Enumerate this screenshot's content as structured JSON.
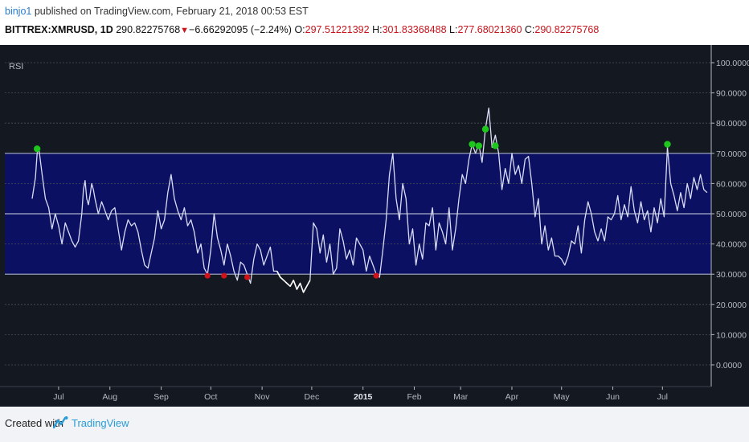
{
  "header": {
    "author": "binjo1",
    "published_text": "published on TradingView.com, February 21, 2018 00:53 EST",
    "symbol": "BITTREX:XMRUSD, 1D",
    "last": "290.82275768",
    "change_arrow": "▼",
    "change": "−6.66292095 (−2.24%)",
    "o_label": "O:",
    "o_value": "297.51221392",
    "h_label": "H:",
    "h_value": "301.83368488",
    "l_label": "L:",
    "l_value": "277.68021360",
    "c_label": "C:",
    "c_value": "290.82275768"
  },
  "footer": {
    "created_with": "Created with",
    "brand": "TradingView"
  },
  "colors": {
    "background": "#141821",
    "band_fill": "#0c1062",
    "line": "#d8dcf6",
    "overbought_dot": "#1ec61e",
    "oversold_dot": "#d0121a",
    "grid": "#4a4f5a",
    "band_line": "#a9b0c8",
    "axis_text": "#b4b9c2",
    "accent": "#2a7ccf"
  },
  "chart_data": {
    "type": "line",
    "indicator_label": "RSI",
    "ylim": [
      -5,
      105
    ],
    "y_ticks": [
      "0.0000",
      "10.0000",
      "20.0000",
      "30.0000",
      "40.0000",
      "50.0000",
      "60.0000",
      "70.0000",
      "80.0000",
      "90.0000",
      "100.0000"
    ],
    "bands": {
      "lower": 30,
      "middle": 50,
      "upper": 70
    },
    "x_ticks": [
      {
        "label": "Jul",
        "bold": false,
        "day": 16
      },
      {
        "label": "Aug",
        "bold": false,
        "day": 47
      },
      {
        "label": "Sep",
        "bold": false,
        "day": 78
      },
      {
        "label": "Oct",
        "bold": false,
        "day": 108
      },
      {
        "label": "Nov",
        "bold": false,
        "day": 139
      },
      {
        "label": "Dec",
        "bold": false,
        "day": 169
      },
      {
        "label": "2015",
        "bold": true,
        "day": 200
      },
      {
        "label": "Feb",
        "bold": false,
        "day": 231
      },
      {
        "label": "Mar",
        "bold": false,
        "day": 259
      },
      {
        "label": "Apr",
        "bold": false,
        "day": 290
      },
      {
        "label": "May",
        "bold": false,
        "day": 320
      },
      {
        "label": "Jun",
        "bold": false,
        "day": 351
      },
      {
        "label": "Jul",
        "bold": false,
        "day": 381
      }
    ],
    "x_range": [
      0,
      410
    ],
    "series": [
      {
        "points": [
          [
            0,
            55
          ],
          [
            2,
            62
          ],
          [
            3,
            70
          ],
          [
            4,
            72
          ],
          [
            6,
            63
          ],
          [
            8,
            55
          ],
          [
            10,
            52
          ],
          [
            12,
            45
          ],
          [
            14,
            50
          ],
          [
            16,
            46
          ],
          [
            18,
            40
          ],
          [
            20,
            47
          ],
          [
            22,
            44
          ],
          [
            24,
            41
          ],
          [
            26,
            39
          ],
          [
            28,
            41
          ],
          [
            30,
            50
          ],
          [
            31,
            58
          ],
          [
            32,
            61
          ],
          [
            33,
            55
          ],
          [
            34,
            53
          ],
          [
            35,
            56
          ],
          [
            36,
            60
          ],
          [
            37,
            58
          ],
          [
            38,
            55
          ],
          [
            40,
            50
          ],
          [
            42,
            54
          ],
          [
            44,
            51
          ],
          [
            46,
            48
          ],
          [
            48,
            51
          ],
          [
            50,
            52
          ],
          [
            52,
            45
          ],
          [
            54,
            38
          ],
          [
            56,
            44
          ],
          [
            58,
            48
          ],
          [
            60,
            46
          ],
          [
            62,
            47
          ],
          [
            64,
            44
          ],
          [
            66,
            38
          ],
          [
            68,
            33
          ],
          [
            70,
            32
          ],
          [
            72,
            37
          ],
          [
            74,
            42
          ],
          [
            76,
            51
          ],
          [
            78,
            45
          ],
          [
            80,
            48
          ],
          [
            82,
            57
          ],
          [
            84,
            63
          ],
          [
            86,
            55
          ],
          [
            88,
            51
          ],
          [
            90,
            48
          ],
          [
            92,
            52
          ],
          [
            94,
            46
          ],
          [
            96,
            48
          ],
          [
            98,
            44
          ],
          [
            100,
            37
          ],
          [
            102,
            40
          ],
          [
            104,
            32
          ],
          [
            106,
            30
          ],
          [
            108,
            38
          ],
          [
            110,
            50
          ],
          [
            112,
            42
          ],
          [
            114,
            38
          ],
          [
            116,
            33
          ],
          [
            118,
            40
          ],
          [
            120,
            36
          ],
          [
            122,
            31
          ],
          [
            124,
            28
          ],
          [
            126,
            34
          ],
          [
            128,
            33
          ],
          [
            130,
            30
          ],
          [
            132,
            27
          ],
          [
            134,
            35
          ],
          [
            136,
            40
          ],
          [
            138,
            38
          ],
          [
            140,
            33
          ],
          [
            142,
            36
          ],
          [
            144,
            39
          ],
          [
            146,
            31
          ],
          [
            148,
            31
          ],
          [
            150,
            29
          ],
          [
            152,
            28
          ],
          [
            154,
            27
          ],
          [
            156,
            26
          ],
          [
            158,
            28
          ],
          [
            160,
            25
          ],
          [
            162,
            27
          ],
          [
            164,
            24
          ],
          [
            166,
            26
          ],
          [
            168,
            28
          ],
          [
            170,
            47
          ],
          [
            172,
            45
          ],
          [
            174,
            37
          ],
          [
            176,
            43
          ],
          [
            178,
            34
          ],
          [
            180,
            40
          ],
          [
            182,
            30
          ],
          [
            184,
            32
          ],
          [
            186,
            45
          ],
          [
            188,
            41
          ],
          [
            190,
            35
          ],
          [
            192,
            38
          ],
          [
            194,
            33
          ],
          [
            196,
            42
          ],
          [
            198,
            40
          ],
          [
            200,
            38
          ],
          [
            202,
            31
          ],
          [
            204,
            36
          ],
          [
            206,
            33
          ],
          [
            208,
            30
          ],
          [
            210,
            29
          ],
          [
            212,
            38
          ],
          [
            214,
            48
          ],
          [
            216,
            63
          ],
          [
            218,
            70
          ],
          [
            220,
            55
          ],
          [
            222,
            48
          ],
          [
            224,
            60
          ],
          [
            226,
            55
          ],
          [
            228,
            40
          ],
          [
            230,
            45
          ],
          [
            232,
            33
          ],
          [
            234,
            40
          ],
          [
            236,
            35
          ],
          [
            238,
            47
          ],
          [
            240,
            46
          ],
          [
            242,
            52
          ],
          [
            244,
            38
          ],
          [
            246,
            47
          ],
          [
            248,
            44
          ],
          [
            250,
            40
          ],
          [
            252,
            52
          ],
          [
            254,
            38
          ],
          [
            256,
            45
          ],
          [
            258,
            55
          ],
          [
            260,
            63
          ],
          [
            262,
            60
          ],
          [
            264,
            68
          ],
          [
            266,
            73
          ],
          [
            268,
            70
          ],
          [
            270,
            73
          ],
          [
            272,
            67
          ],
          [
            274,
            78
          ],
          [
            276,
            85
          ],
          [
            278,
            72
          ],
          [
            280,
            76
          ],
          [
            282,
            70
          ],
          [
            284,
            58
          ],
          [
            286,
            65
          ],
          [
            288,
            60
          ],
          [
            290,
            70
          ],
          [
            292,
            63
          ],
          [
            294,
            66
          ],
          [
            296,
            60
          ],
          [
            298,
            68
          ],
          [
            300,
            69
          ],
          [
            302,
            60
          ],
          [
            304,
            49
          ],
          [
            306,
            55
          ],
          [
            308,
            40
          ],
          [
            310,
            46
          ],
          [
            312,
            38
          ],
          [
            314,
            42
          ],
          [
            316,
            36
          ],
          [
            318,
            36
          ],
          [
            320,
            35
          ],
          [
            322,
            33
          ],
          [
            324,
            36
          ],
          [
            326,
            41
          ],
          [
            328,
            40
          ],
          [
            330,
            46
          ],
          [
            332,
            37
          ],
          [
            334,
            48
          ],
          [
            336,
            54
          ],
          [
            338,
            50
          ],
          [
            340,
            44
          ],
          [
            342,
            41
          ],
          [
            344,
            45
          ],
          [
            346,
            41
          ],
          [
            348,
            49
          ],
          [
            350,
            48
          ],
          [
            352,
            50
          ],
          [
            354,
            56
          ],
          [
            356,
            48
          ],
          [
            358,
            53
          ],
          [
            360,
            49
          ],
          [
            362,
            59
          ],
          [
            364,
            51
          ],
          [
            366,
            47
          ],
          [
            368,
            54
          ],
          [
            370,
            48
          ],
          [
            372,
            51
          ],
          [
            374,
            44
          ],
          [
            376,
            52
          ],
          [
            378,
            47
          ],
          [
            380,
            55
          ],
          [
            382,
            49
          ],
          [
            384,
            72
          ],
          [
            386,
            60
          ],
          [
            388,
            56
          ],
          [
            390,
            51
          ],
          [
            392,
            57
          ],
          [
            394,
            52
          ],
          [
            396,
            60
          ],
          [
            398,
            55
          ],
          [
            400,
            62
          ],
          [
            402,
            58
          ],
          [
            404,
            63
          ],
          [
            406,
            58
          ],
          [
            408,
            57
          ]
        ]
      }
    ],
    "overbought_markers": [
      [
        3,
        71.5
      ],
      [
        266,
        73
      ],
      [
        270,
        72.5
      ],
      [
        274,
        78
      ],
      [
        280,
        72.5
      ],
      [
        384,
        73
      ]
    ],
    "oversold_markers": [
      [
        106,
        29.5
      ],
      [
        116,
        29.5
      ],
      [
        130,
        29
      ],
      [
        208,
        29.5
      ]
    ],
    "highlight_range_days": [
      148,
      168
    ]
  }
}
